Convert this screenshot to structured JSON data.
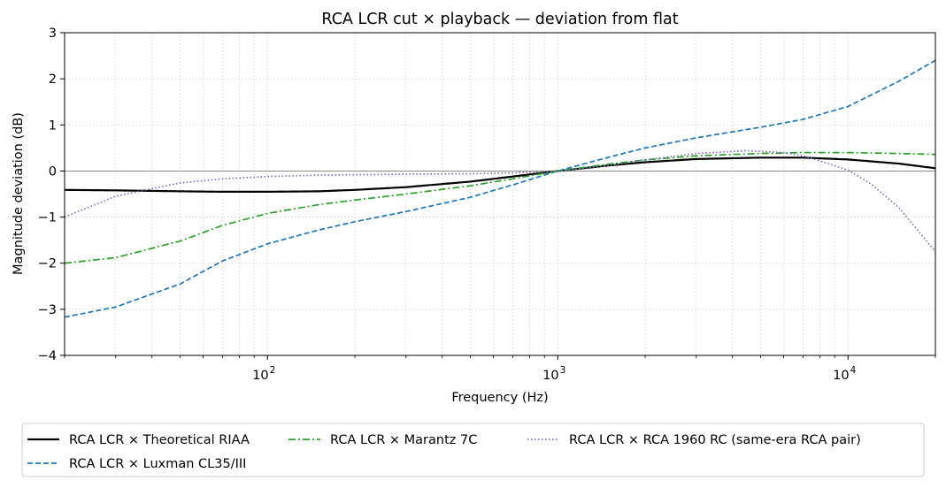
{
  "chart_data": {
    "type": "line",
    "title": "RCA LCR cut × playback — deviation from flat",
    "xlabel": "Frequency (Hz)",
    "ylabel": "Magnitude deviation (dB)",
    "xscale": "log",
    "xlim": [
      20,
      20000
    ],
    "ylim": [
      -4,
      3
    ],
    "xticks": [
      {
        "value": 100,
        "base": "10",
        "exp": "2"
      },
      {
        "value": 1000,
        "base": "10",
        "exp": "3"
      },
      {
        "value": 10000,
        "base": "10",
        "exp": "4"
      }
    ],
    "yticks": [
      {
        "value": 3,
        "label": "3"
      },
      {
        "value": 2,
        "label": "2"
      },
      {
        "value": 1,
        "label": "1"
      },
      {
        "value": 0,
        "label": "0"
      },
      {
        "value": -1,
        "label": "−1"
      },
      {
        "value": -2,
        "label": "−2"
      },
      {
        "value": -3,
        "label": "−3"
      },
      {
        "value": -4,
        "label": "−4"
      }
    ],
    "grid": true,
    "legend_position": "bottom, outside plot",
    "reference_line_y": 0,
    "series": [
      {
        "name": "RCA LCR × Theoretical RIAA",
        "color": "#000000",
        "dash": "solid",
        "x": [
          20,
          30,
          50,
          70,
          100,
          150,
          200,
          300,
          500,
          700,
          1000,
          1500,
          2000,
          3000,
          5000,
          7000,
          10000,
          15000,
          20000
        ],
        "y": [
          -0.41,
          -0.42,
          -0.44,
          -0.45,
          -0.45,
          -0.44,
          -0.41,
          -0.35,
          -0.23,
          -0.12,
          0.0,
          0.12,
          0.19,
          0.26,
          0.29,
          0.29,
          0.25,
          0.16,
          0.06
        ]
      },
      {
        "name": "RCA LCR × Luxman CL35/III",
        "color": "#1f77b4",
        "dash": "dashed",
        "x": [
          20,
          30,
          50,
          70,
          100,
          150,
          200,
          300,
          500,
          700,
          1000,
          1500,
          2000,
          3000,
          5000,
          7000,
          10000,
          15000,
          20000
        ],
        "y": [
          -3.17,
          -2.95,
          -2.45,
          -1.95,
          -1.58,
          -1.28,
          -1.1,
          -0.88,
          -0.57,
          -0.3,
          0.0,
          0.3,
          0.5,
          0.72,
          0.95,
          1.12,
          1.4,
          1.95,
          2.4
        ]
      },
      {
        "name": "RCA LCR × Marantz 7C",
        "color": "#2ca02c",
        "dash": "dashdot",
        "x": [
          20,
          30,
          50,
          70,
          100,
          150,
          200,
          300,
          500,
          700,
          1000,
          1500,
          2000,
          3000,
          5000,
          7000,
          10000,
          15000,
          20000
        ],
        "y": [
          -2.0,
          -1.88,
          -1.52,
          -1.18,
          -0.92,
          -0.73,
          -0.63,
          -0.5,
          -0.32,
          -0.17,
          0.0,
          0.15,
          0.24,
          0.33,
          0.38,
          0.4,
          0.4,
          0.38,
          0.36
        ]
      },
      {
        "name": "RCA LCR × RCA 1960 RC (same-era RCA pair)",
        "color": "#7f6abf",
        "dash": "dotted",
        "x": [
          20,
          25,
          30,
          40,
          50,
          70,
          100,
          150,
          200,
          300,
          500,
          700,
          1000,
          1500,
          2000,
          3000,
          4500,
          6000,
          7000,
          8000,
          10000,
          12000,
          15000,
          20000
        ],
        "y": [
          -1.0,
          -0.75,
          -0.55,
          -0.38,
          -0.26,
          -0.17,
          -0.12,
          -0.09,
          -0.08,
          -0.07,
          -0.06,
          -0.04,
          0.0,
          0.12,
          0.24,
          0.38,
          0.44,
          0.4,
          0.33,
          0.22,
          0.02,
          -0.28,
          -0.8,
          -1.75
        ]
      }
    ]
  }
}
